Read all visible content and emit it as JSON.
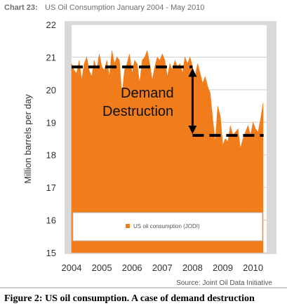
{
  "chart_data": {
    "type": "area",
    "chart_number": "Chart 23:",
    "title": "US Oil Consumption January 2004 - May 2010",
    "ylabel": "Million barrels per day",
    "xlabel": "",
    "ylim": [
      15,
      22
    ],
    "xlim": [
      2004,
      2010.45
    ],
    "yticks": [
      "15",
      "16",
      "17",
      "18",
      "19",
      "20",
      "21",
      "22"
    ],
    "xticks": [
      "2004",
      "2005",
      "2006",
      "2007",
      "2008",
      "2009",
      "2010"
    ],
    "grid": "horizontal",
    "legend": {
      "position": "bottom-inside",
      "label": "US oil consumption (JODI)"
    },
    "series": [
      {
        "name": "US oil consumption (JODI)",
        "color": "#f07c1b",
        "x": [
          2004.0,
          2004.083,
          2004.167,
          2004.25,
          2004.333,
          2004.417,
          2004.5,
          2004.583,
          2004.667,
          2004.75,
          2004.833,
          2004.917,
          2005.0,
          2005.083,
          2005.167,
          2005.25,
          2005.333,
          2005.417,
          2005.5,
          2005.583,
          2005.667,
          2005.75,
          2005.833,
          2005.917,
          2006.0,
          2006.083,
          2006.167,
          2006.25,
          2006.333,
          2006.417,
          2006.5,
          2006.583,
          2006.667,
          2006.75,
          2006.833,
          2006.917,
          2007.0,
          2007.083,
          2007.167,
          2007.25,
          2007.333,
          2007.417,
          2007.5,
          2007.583,
          2007.667,
          2007.75,
          2007.833,
          2007.917,
          2008.0,
          2008.083,
          2008.167,
          2008.25,
          2008.333,
          2008.417,
          2008.5,
          2008.583,
          2008.667,
          2008.75,
          2008.833,
          2008.917,
          2009.0,
          2009.083,
          2009.167,
          2009.25,
          2009.333,
          2009.417,
          2009.5,
          2009.583,
          2009.667,
          2009.75,
          2009.833,
          2009.917,
          2010.0,
          2010.083,
          2010.167,
          2010.25,
          2010.333
        ],
        "values": [
          20.8,
          20.6,
          20.5,
          20.9,
          20.3,
          20.8,
          21.0,
          20.6,
          20.4,
          20.9,
          20.6,
          21.1,
          20.7,
          20.6,
          20.9,
          20.4,
          21.2,
          20.8,
          21.0,
          20.9,
          19.8,
          20.6,
          20.8,
          21.1,
          20.5,
          20.9,
          20.8,
          20.2,
          20.9,
          21.0,
          21.2,
          20.8,
          20.3,
          20.7,
          21.0,
          20.9,
          21.1,
          20.9,
          20.4,
          20.8,
          20.6,
          20.9,
          20.7,
          20.8,
          20.5,
          21.0,
          20.8,
          21.0,
          20.7,
          20.4,
          20.8,
          20.5,
          20.2,
          20.4,
          20.1,
          19.9,
          19.1,
          18.4,
          19.5,
          19.2,
          18.3,
          18.5,
          18.4,
          18.9,
          18.6,
          18.7,
          18.8,
          18.2,
          18.5,
          18.7,
          18.9,
          18.6,
          19.0,
          18.8,
          18.7,
          19.1,
          19.6
        ]
      }
    ],
    "annotations": [
      {
        "text_line1": "Demand",
        "text_line2": "Destruction"
      },
      {
        "kind": "dashed-line",
        "y": 20.7,
        "x_from": 2004.0,
        "x_to": 2008.0
      },
      {
        "kind": "dashed-line",
        "y": 18.6,
        "x_from": 2008.0,
        "x_to": 2010.35
      },
      {
        "kind": "double-arrow",
        "x": 2008.0,
        "y_from": 20.7,
        "y_to": 18.6
      }
    ],
    "source": "Source: Joint Oil Data Initiative"
  },
  "caption": "Figure 2: US oil consumption. A case of demand destruction",
  "colors": {
    "area": "#f07c1b",
    "plot_background": "#ffffff",
    "outer_background": "#d9d9d9",
    "dashed_line": "#000000"
  }
}
